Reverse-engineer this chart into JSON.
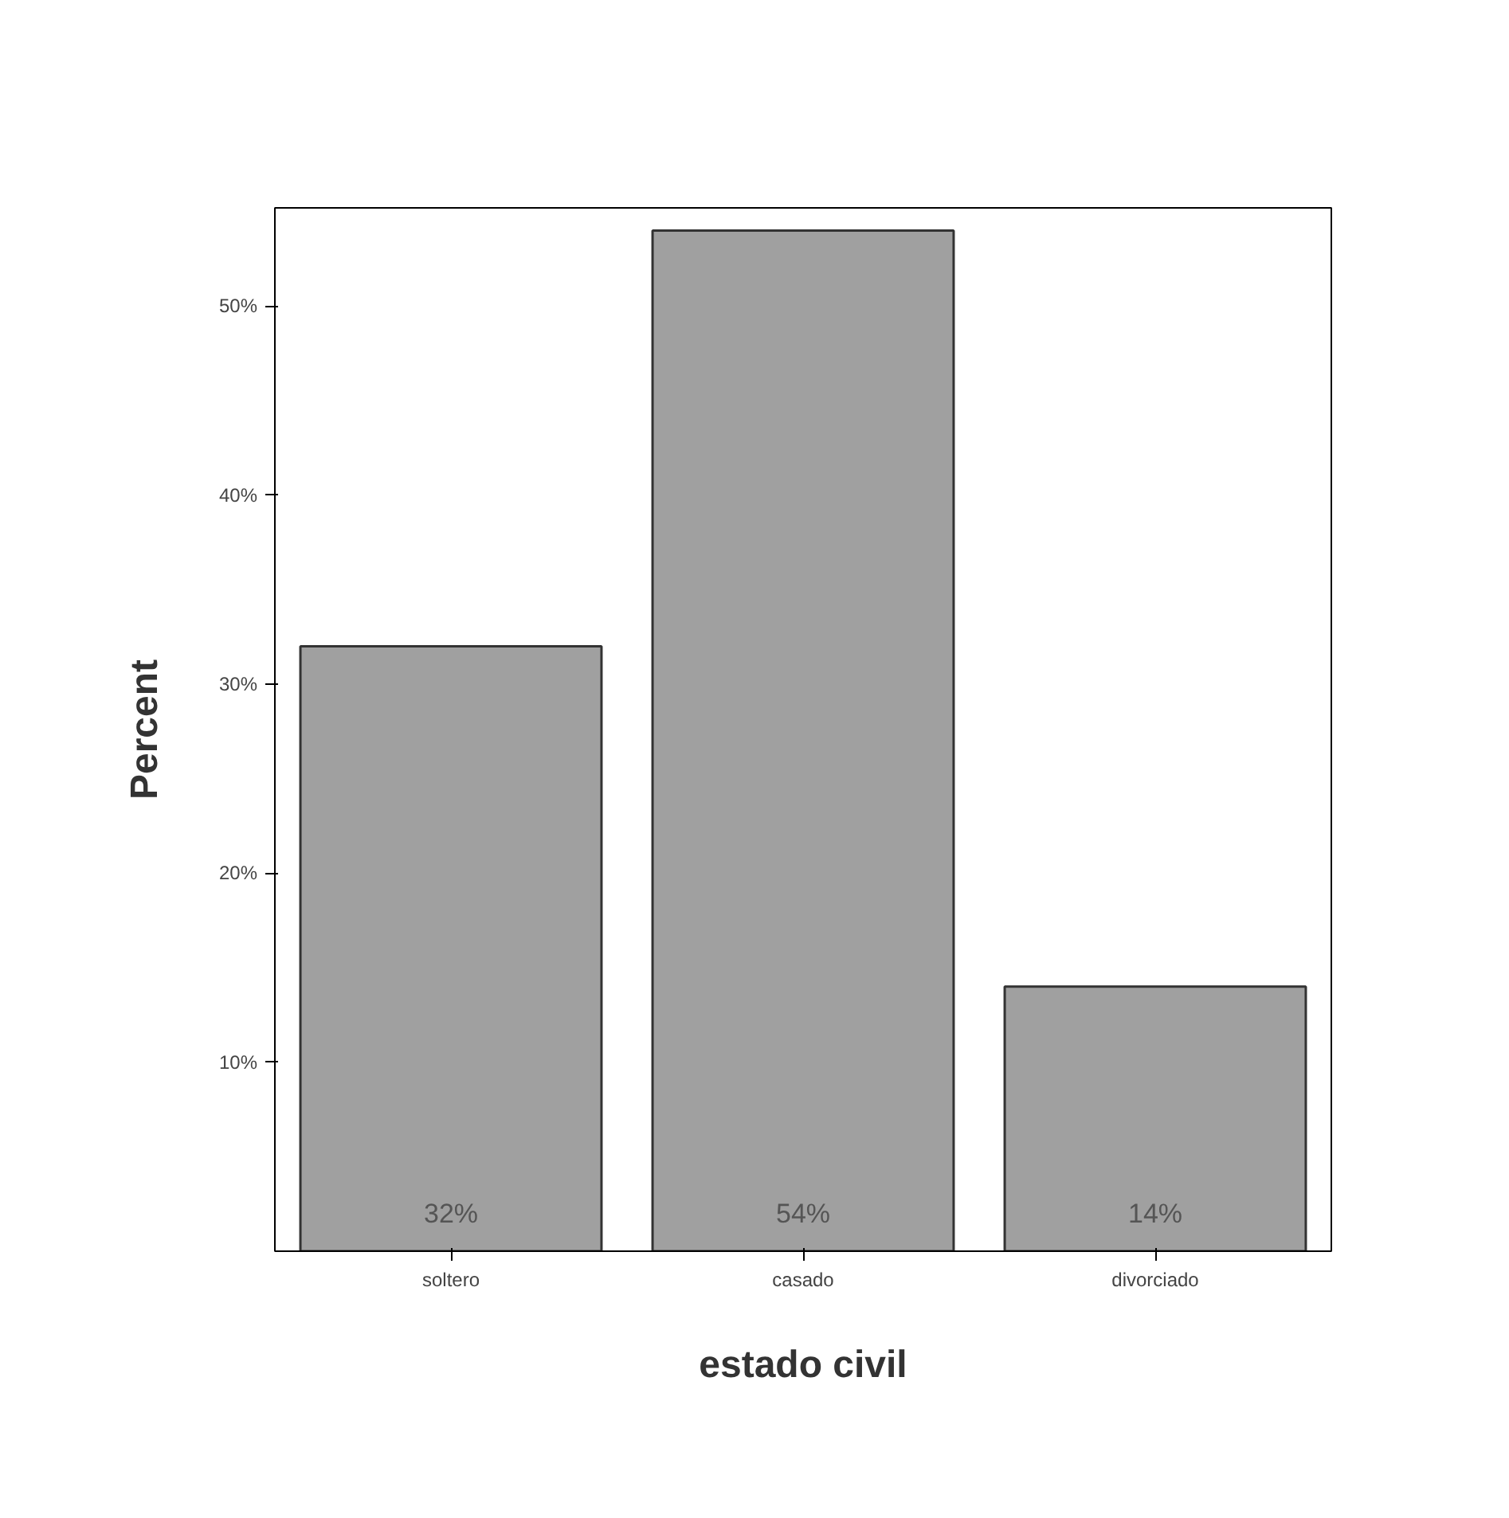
{
  "chart_data": {
    "type": "bar",
    "xlabel": "estado civil",
    "ylabel": "Percent",
    "categories": [
      "soltero",
      "casado",
      "divorciado"
    ],
    "values": [
      32,
      54,
      14
    ],
    "value_labels": [
      "32%",
      "54%",
      "14%"
    ],
    "color": "#a0a0a0",
    "ylim": [
      0,
      55.2
    ],
    "yticks": [
      {
        "value": 10,
        "label": "10%"
      },
      {
        "value": 20,
        "label": "20%"
      },
      {
        "value": 30,
        "label": "30%"
      },
      {
        "value": 40,
        "label": "40%"
      },
      {
        "value": 50,
        "label": "50%"
      }
    ],
    "grid": false
  }
}
